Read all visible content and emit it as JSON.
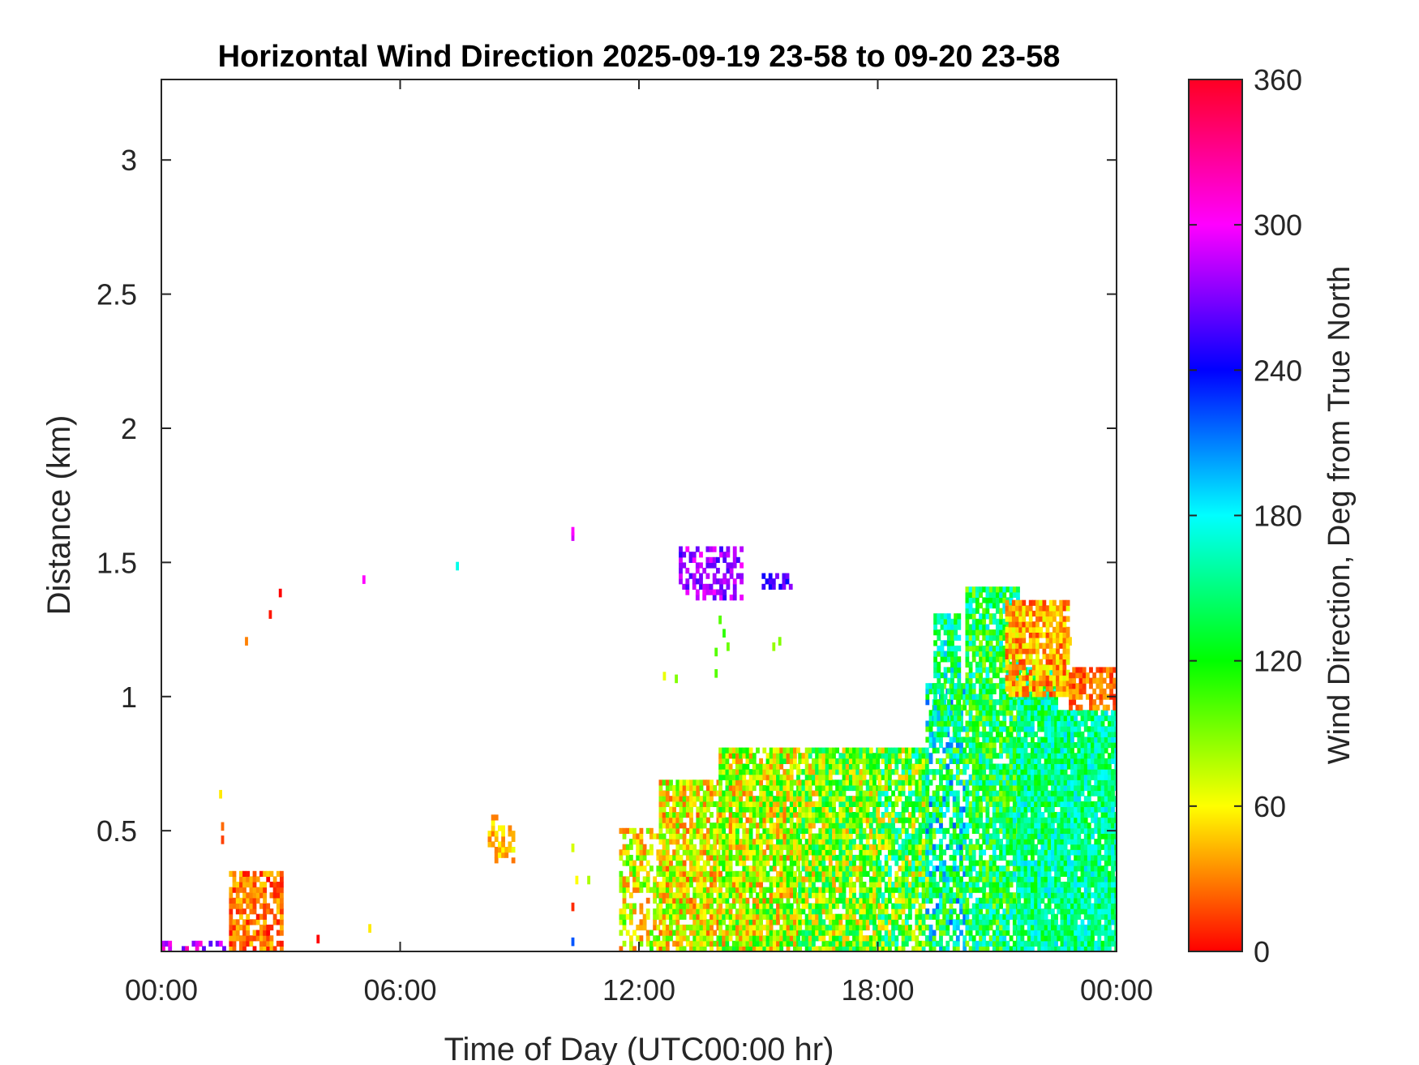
{
  "chart_data": {
    "type": "heatmap",
    "title": "Horizontal Wind Direction 2025-09-19 23-58 to 09-20 23-58",
    "xlabel": "Time of Day (UTC00:00 hr)",
    "ylabel": "Distance (km)",
    "colorbar_label": "Wind Direction, Deg from True North",
    "x_ticks": [
      "00:00",
      "06:00",
      "12:00",
      "18:00",
      "00:00"
    ],
    "x_range_hours": [
      0,
      24
    ],
    "y_ticks": [
      "0.5",
      "1",
      "1.5",
      "2",
      "2.5",
      "3"
    ],
    "y_tick_values": [
      0.5,
      1,
      1.5,
      2,
      2.5,
      3
    ],
    "ylim_km": [
      0.05,
      3.3
    ],
    "colorbar_ticks": [
      "0",
      "60",
      "120",
      "180",
      "240",
      "300",
      "360"
    ],
    "colorbar_tick_values": [
      0,
      60,
      120,
      180,
      240,
      300,
      360
    ],
    "clim_deg": [
      0,
      360
    ],
    "colormap": "hsv",
    "grid": false,
    "regions": [
      {
        "t": [
          1.7,
          3.0
        ],
        "h": [
          0.05,
          0.35
        ],
        "dir": 25,
        "spread": 25,
        "density": 0.7
      },
      {
        "t": [
          0.0,
          1.6
        ],
        "h": [
          0.05,
          0.08
        ],
        "dir": 290,
        "spread": 30,
        "density": 0.35
      },
      {
        "t": [
          8.2,
          8.8
        ],
        "h": [
          0.38,
          0.55
        ],
        "dir": 45,
        "spread": 20,
        "density": 0.5
      },
      {
        "t": [
          13.0,
          14.6
        ],
        "h": [
          1.36,
          1.56
        ],
        "dir": 275,
        "spread": 25,
        "density": 0.45
      },
      {
        "t": [
          15.0,
          15.8
        ],
        "h": [
          1.4,
          1.46
        ],
        "dir": 255,
        "spread": 20,
        "density": 0.5
      },
      {
        "t": [
          11.5,
          12.5
        ],
        "h": [
          0.05,
          0.5
        ],
        "dir": 70,
        "spread": 45,
        "density": 0.6
      },
      {
        "t": [
          12.5,
          14.0
        ],
        "h": [
          0.05,
          0.68
        ],
        "dir": 65,
        "spread": 45,
        "density": 0.85
      },
      {
        "t": [
          14.0,
          16.0
        ],
        "h": [
          0.05,
          0.8
        ],
        "dir": 80,
        "spread": 55,
        "density": 0.9
      },
      {
        "t": [
          16.0,
          18.0
        ],
        "h": [
          0.05,
          0.8
        ],
        "dir": 95,
        "spread": 60,
        "density": 0.9
      },
      {
        "t": [
          18.0,
          19.2
        ],
        "h": [
          0.05,
          0.8
        ],
        "dir": 110,
        "spread": 70,
        "density": 0.85
      },
      {
        "t": [
          19.2,
          20.2
        ],
        "h": [
          0.05,
          1.05
        ],
        "dir": 150,
        "spread": 70,
        "density": 0.7
      },
      {
        "t": [
          19.4,
          20.0
        ],
        "h": [
          0.85,
          1.3
        ],
        "dir": 150,
        "spread": 50,
        "density": 0.75
      },
      {
        "t": [
          20.2,
          21.5
        ],
        "h": [
          0.05,
          1.4
        ],
        "dir": 135,
        "spread": 55,
        "density": 0.85
      },
      {
        "t": [
          21.5,
          22.5
        ],
        "h": [
          0.05,
          1.1
        ],
        "dir": 150,
        "spread": 40,
        "density": 0.95
      },
      {
        "t": [
          21.2,
          22.8
        ],
        "h": [
          1.0,
          1.35
        ],
        "dir": 40,
        "spread": 30,
        "density": 0.85
      },
      {
        "t": [
          22.5,
          24.0
        ],
        "h": [
          0.05,
          0.95
        ],
        "dir": 155,
        "spread": 35,
        "density": 0.95
      },
      {
        "t": [
          22.8,
          24.0
        ],
        "h": [
          0.95,
          1.1
        ],
        "dir": 25,
        "spread": 20,
        "density": 0.7
      }
    ],
    "points": [
      {
        "t": 1.5,
        "h": 0.45,
        "dir": 15
      },
      {
        "t": 1.5,
        "h": 0.5,
        "dir": 25
      },
      {
        "t": 1.45,
        "h": 0.62,
        "dir": 55
      },
      {
        "t": 2.1,
        "h": 1.19,
        "dir": 30
      },
      {
        "t": 2.7,
        "h": 1.29,
        "dir": 5
      },
      {
        "t": 2.95,
        "h": 1.37,
        "dir": 0
      },
      {
        "t": 3.9,
        "h": 0.08,
        "dir": 0
      },
      {
        "t": 5.2,
        "h": 0.12,
        "dir": 55
      },
      {
        "t": 5.05,
        "h": 1.42,
        "dir": 300
      },
      {
        "t": 7.4,
        "h": 1.47,
        "dir": 175
      },
      {
        "t": 10.3,
        "h": 1.58,
        "dir": 290
      },
      {
        "t": 10.3,
        "h": 1.6,
        "dir": 300
      },
      {
        "t": 10.3,
        "h": 0.42,
        "dir": 70
      },
      {
        "t": 10.4,
        "h": 0.3,
        "dir": 60
      },
      {
        "t": 10.3,
        "h": 0.2,
        "dir": 10
      },
      {
        "t": 10.7,
        "h": 0.3,
        "dir": 80
      },
      {
        "t": 10.3,
        "h": 0.07,
        "dir": 220
      },
      {
        "t": 12.6,
        "h": 1.06,
        "dir": 65
      },
      {
        "t": 12.9,
        "h": 1.05,
        "dir": 90
      },
      {
        "t": 13.9,
        "h": 1.07,
        "dir": 100
      },
      {
        "t": 13.9,
        "h": 1.15,
        "dir": 100
      },
      {
        "t": 14.1,
        "h": 1.22,
        "dir": 110
      },
      {
        "t": 14.0,
        "h": 1.27,
        "dir": 100
      },
      {
        "t": 15.5,
        "h": 1.19,
        "dir": 90
      },
      {
        "t": 15.35,
        "h": 1.17,
        "dir": 85
      },
      {
        "t": 14.2,
        "h": 1.17,
        "dir": 95
      },
      {
        "t": 22.8,
        "h": 1.19,
        "dir": 50
      }
    ]
  }
}
